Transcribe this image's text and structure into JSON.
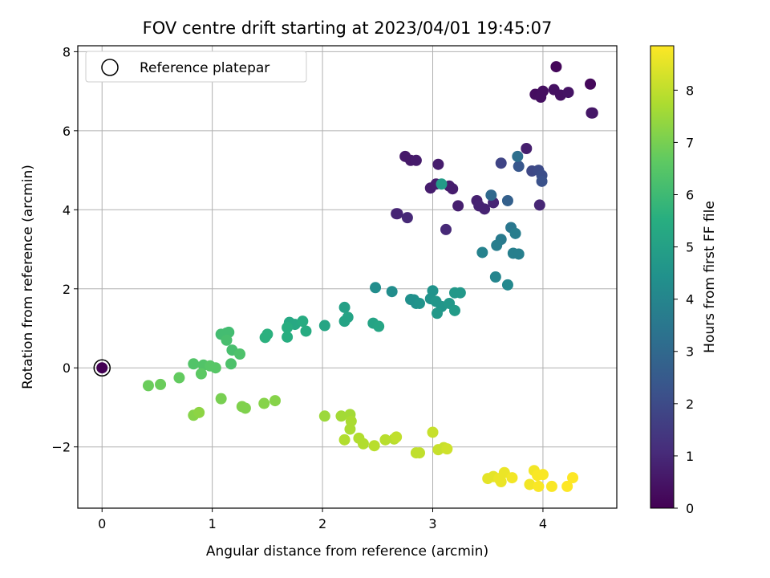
{
  "chart_data": {
    "type": "scatter",
    "title": "FOV centre drift starting at 2023/04/01 19:45:07",
    "xlabel": "Angular distance from reference (arcmin)",
    "ylabel": "Rotation from reference (arcmin)",
    "xlim": [
      -0.22,
      4.67
    ],
    "ylim": [
      -3.55,
      8.15
    ],
    "xticks": [
      0,
      1,
      2,
      3,
      4
    ],
    "yticks": [
      -2,
      0,
      2,
      4,
      6,
      8
    ],
    "grid": true,
    "legend": {
      "placement": "top-left",
      "entries": [
        "Reference platepar"
      ]
    },
    "colorbar": {
      "label": "Hours from first FF file",
      "range": [
        0,
        8.85
      ],
      "ticks": [
        0,
        1,
        2,
        3,
        4,
        5,
        6,
        7,
        8
      ],
      "colormap": "viridis"
    },
    "reference_point": {
      "x": 0,
      "y": 0
    },
    "points": [
      {
        "x": 4.12,
        "y": 7.62,
        "h": 0.15
      },
      {
        "x": 4.43,
        "y": 7.18,
        "h": 0.2
      },
      {
        "x": 3.93,
        "y": 6.92,
        "h": 0.3
      },
      {
        "x": 3.97,
        "y": 6.9,
        "h": 0.3
      },
      {
        "x": 4.0,
        "y": 7.0,
        "h": 0.35
      },
      {
        "x": 4.1,
        "y": 7.04,
        "h": 0.4
      },
      {
        "x": 3.98,
        "y": 6.85,
        "h": 0.35
      },
      {
        "x": 4.16,
        "y": 6.9,
        "h": 0.4
      },
      {
        "x": 4.23,
        "y": 6.97,
        "h": 0.45
      },
      {
        "x": 4.45,
        "y": 6.45,
        "h": 0.5
      },
      {
        "x": 4.44,
        "y": 6.45,
        "h": 0.55
      },
      {
        "x": 2.75,
        "y": 5.35,
        "h": 0.6
      },
      {
        "x": 2.8,
        "y": 5.25,
        "h": 0.6
      },
      {
        "x": 2.85,
        "y": 5.25,
        "h": 0.65
      },
      {
        "x": 3.05,
        "y": 5.15,
        "h": 0.7
      },
      {
        "x": 3.85,
        "y": 5.55,
        "h": 0.75
      },
      {
        "x": 2.98,
        "y": 4.55,
        "h": 0.7
      },
      {
        "x": 3.03,
        "y": 4.65,
        "h": 0.75
      },
      {
        "x": 3.15,
        "y": 4.6,
        "h": 0.7
      },
      {
        "x": 3.18,
        "y": 4.53,
        "h": 0.7
      },
      {
        "x": 3.23,
        "y": 4.1,
        "h": 0.75
      },
      {
        "x": 3.4,
        "y": 4.23,
        "h": 0.8
      },
      {
        "x": 3.42,
        "y": 4.1,
        "h": 0.85
      },
      {
        "x": 3.47,
        "y": 4.02,
        "h": 0.85
      },
      {
        "x": 3.55,
        "y": 4.18,
        "h": 0.9
      },
      {
        "x": 3.97,
        "y": 4.12,
        "h": 0.95
      },
      {
        "x": 2.67,
        "y": 3.9,
        "h": 0.95
      },
      {
        "x": 2.68,
        "y": 3.9,
        "h": 0.9
      },
      {
        "x": 2.77,
        "y": 3.8,
        "h": 1.0
      },
      {
        "x": 3.12,
        "y": 3.5,
        "h": 1.0
      },
      {
        "x": 3.62,
        "y": 5.18,
        "h": 1.8
      },
      {
        "x": 3.9,
        "y": 4.98,
        "h": 1.9
      },
      {
        "x": 3.96,
        "y": 5.0,
        "h": 2.0
      },
      {
        "x": 3.99,
        "y": 4.87,
        "h": 2.1
      },
      {
        "x": 3.99,
        "y": 4.72,
        "h": 2.2
      },
      {
        "x": 3.78,
        "y": 5.1,
        "h": 2.4
      },
      {
        "x": 3.77,
        "y": 5.35,
        "h": 3.2
      },
      {
        "x": 3.68,
        "y": 4.23,
        "h": 2.7
      },
      {
        "x": 3.53,
        "y": 4.37,
        "h": 3.0
      },
      {
        "x": 3.08,
        "y": 4.65,
        "h": 4.8
      },
      {
        "x": 3.71,
        "y": 3.55,
        "h": 3.5
      },
      {
        "x": 3.62,
        "y": 3.25,
        "h": 3.6
      },
      {
        "x": 3.58,
        "y": 3.1,
        "h": 3.7
      },
      {
        "x": 3.75,
        "y": 3.4,
        "h": 3.7
      },
      {
        "x": 3.73,
        "y": 2.9,
        "h": 3.8
      },
      {
        "x": 3.78,
        "y": 2.88,
        "h": 3.8
      },
      {
        "x": 3.45,
        "y": 2.92,
        "h": 3.9
      },
      {
        "x": 3.57,
        "y": 2.3,
        "h": 4.0
      },
      {
        "x": 3.68,
        "y": 2.1,
        "h": 4.1
      },
      {
        "x": 2.48,
        "y": 2.03,
        "h": 4.3
      },
      {
        "x": 2.63,
        "y": 1.93,
        "h": 4.3
      },
      {
        "x": 2.8,
        "y": 1.73,
        "h": 4.4
      },
      {
        "x": 2.83,
        "y": 1.72,
        "h": 4.4
      },
      {
        "x": 2.85,
        "y": 1.63,
        "h": 4.4
      },
      {
        "x": 2.88,
        "y": 1.63,
        "h": 4.5
      },
      {
        "x": 3.0,
        "y": 1.95,
        "h": 4.5
      },
      {
        "x": 2.98,
        "y": 1.75,
        "h": 4.5
      },
      {
        "x": 3.03,
        "y": 1.68,
        "h": 4.6
      },
      {
        "x": 3.08,
        "y": 1.55,
        "h": 4.6
      },
      {
        "x": 3.04,
        "y": 1.38,
        "h": 4.7
      },
      {
        "x": 3.15,
        "y": 1.63,
        "h": 4.7
      },
      {
        "x": 3.2,
        "y": 1.9,
        "h": 4.7
      },
      {
        "x": 3.25,
        "y": 1.9,
        "h": 4.7
      },
      {
        "x": 3.2,
        "y": 1.45,
        "h": 4.8
      },
      {
        "x": 2.2,
        "y": 1.53,
        "h": 5.0
      },
      {
        "x": 2.2,
        "y": 1.18,
        "h": 5.1
      },
      {
        "x": 2.23,
        "y": 1.28,
        "h": 5.1
      },
      {
        "x": 2.46,
        "y": 1.13,
        "h": 5.1
      },
      {
        "x": 2.51,
        "y": 1.05,
        "h": 5.2
      },
      {
        "x": 2.02,
        "y": 1.07,
        "h": 5.2
      },
      {
        "x": 1.7,
        "y": 1.15,
        "h": 5.3
      },
      {
        "x": 1.75,
        "y": 1.1,
        "h": 5.3
      },
      {
        "x": 1.82,
        "y": 1.18,
        "h": 5.4
      },
      {
        "x": 1.85,
        "y": 0.93,
        "h": 5.4
      },
      {
        "x": 1.68,
        "y": 1.02,
        "h": 5.5
      },
      {
        "x": 1.68,
        "y": 0.78,
        "h": 5.5
      },
      {
        "x": 1.5,
        "y": 0.85,
        "h": 5.6
      },
      {
        "x": 1.48,
        "y": 0.77,
        "h": 5.6
      },
      {
        "x": 1.13,
        "y": 0.88,
        "h": 6.0
      },
      {
        "x": 1.08,
        "y": 0.85,
        "h": 6.1
      },
      {
        "x": 1.15,
        "y": 0.9,
        "h": 6.1
      },
      {
        "x": 1.13,
        "y": 0.7,
        "h": 6.2
      },
      {
        "x": 1.18,
        "y": 0.45,
        "h": 6.2
      },
      {
        "x": 1.25,
        "y": 0.35,
        "h": 6.3
      },
      {
        "x": 1.17,
        "y": 0.1,
        "h": 6.3
      },
      {
        "x": 0.83,
        "y": 0.1,
        "h": 6.4
      },
      {
        "x": 0.92,
        "y": 0.07,
        "h": 6.4
      },
      {
        "x": 0.98,
        "y": 0.05,
        "h": 6.5
      },
      {
        "x": 1.03,
        "y": 0.0,
        "h": 6.5
      },
      {
        "x": 0.9,
        "y": -0.15,
        "h": 6.6
      },
      {
        "x": 0.7,
        "y": -0.25,
        "h": 6.7
      },
      {
        "x": 0.53,
        "y": -0.42,
        "h": 6.8
      },
      {
        "x": 0.42,
        "y": -0.45,
        "h": 6.8
      },
      {
        "x": 1.08,
        "y": -0.78,
        "h": 7.0
      },
      {
        "x": 1.27,
        "y": -0.98,
        "h": 7.1
      },
      {
        "x": 1.3,
        "y": -1.02,
        "h": 7.1
      },
      {
        "x": 1.47,
        "y": -0.9,
        "h": 7.2
      },
      {
        "x": 1.57,
        "y": -0.83,
        "h": 7.2
      },
      {
        "x": 0.83,
        "y": -1.2,
        "h": 7.2
      },
      {
        "x": 0.88,
        "y": -1.13,
        "h": 7.3
      },
      {
        "x": 2.02,
        "y": -1.22,
        "h": 7.5
      },
      {
        "x": 2.17,
        "y": -1.22,
        "h": 7.6
      },
      {
        "x": 2.25,
        "y": -1.18,
        "h": 7.6
      },
      {
        "x": 2.26,
        "y": -1.35,
        "h": 7.7
      },
      {
        "x": 2.25,
        "y": -1.55,
        "h": 7.7
      },
      {
        "x": 2.2,
        "y": -1.82,
        "h": 7.8
      },
      {
        "x": 2.33,
        "y": -1.78,
        "h": 7.8
      },
      {
        "x": 2.37,
        "y": -1.92,
        "h": 7.8
      },
      {
        "x": 2.47,
        "y": -1.97,
        "h": 7.9
      },
      {
        "x": 2.57,
        "y": -1.82,
        "h": 7.9
      },
      {
        "x": 2.65,
        "y": -1.8,
        "h": 7.9
      },
      {
        "x": 2.67,
        "y": -1.75,
        "h": 8.0
      },
      {
        "x": 2.85,
        "y": -2.15,
        "h": 8.0
      },
      {
        "x": 2.88,
        "y": -2.15,
        "h": 8.0
      },
      {
        "x": 3.0,
        "y": -1.63,
        "h": 8.1
      },
      {
        "x": 3.05,
        "y": -2.07,
        "h": 8.1
      },
      {
        "x": 3.1,
        "y": -2.02,
        "h": 8.1
      },
      {
        "x": 3.13,
        "y": -2.05,
        "h": 8.2
      },
      {
        "x": 3.5,
        "y": -2.8,
        "h": 8.5
      },
      {
        "x": 3.55,
        "y": -2.75,
        "h": 8.5
      },
      {
        "x": 3.6,
        "y": -2.8,
        "h": 8.6
      },
      {
        "x": 3.62,
        "y": -2.88,
        "h": 8.6
      },
      {
        "x": 3.65,
        "y": -2.65,
        "h": 8.6
      },
      {
        "x": 3.72,
        "y": -2.78,
        "h": 8.7
      },
      {
        "x": 3.88,
        "y": -2.95,
        "h": 8.7
      },
      {
        "x": 3.92,
        "y": -2.6,
        "h": 8.7
      },
      {
        "x": 3.95,
        "y": -2.72,
        "h": 8.8
      },
      {
        "x": 3.96,
        "y": -3.0,
        "h": 8.8
      },
      {
        "x": 4.0,
        "y": -2.7,
        "h": 8.8
      },
      {
        "x": 4.08,
        "y": -3.0,
        "h": 8.8
      },
      {
        "x": 4.22,
        "y": -3.0,
        "h": 8.85
      },
      {
        "x": 4.27,
        "y": -2.78,
        "h": 8.85
      }
    ]
  }
}
